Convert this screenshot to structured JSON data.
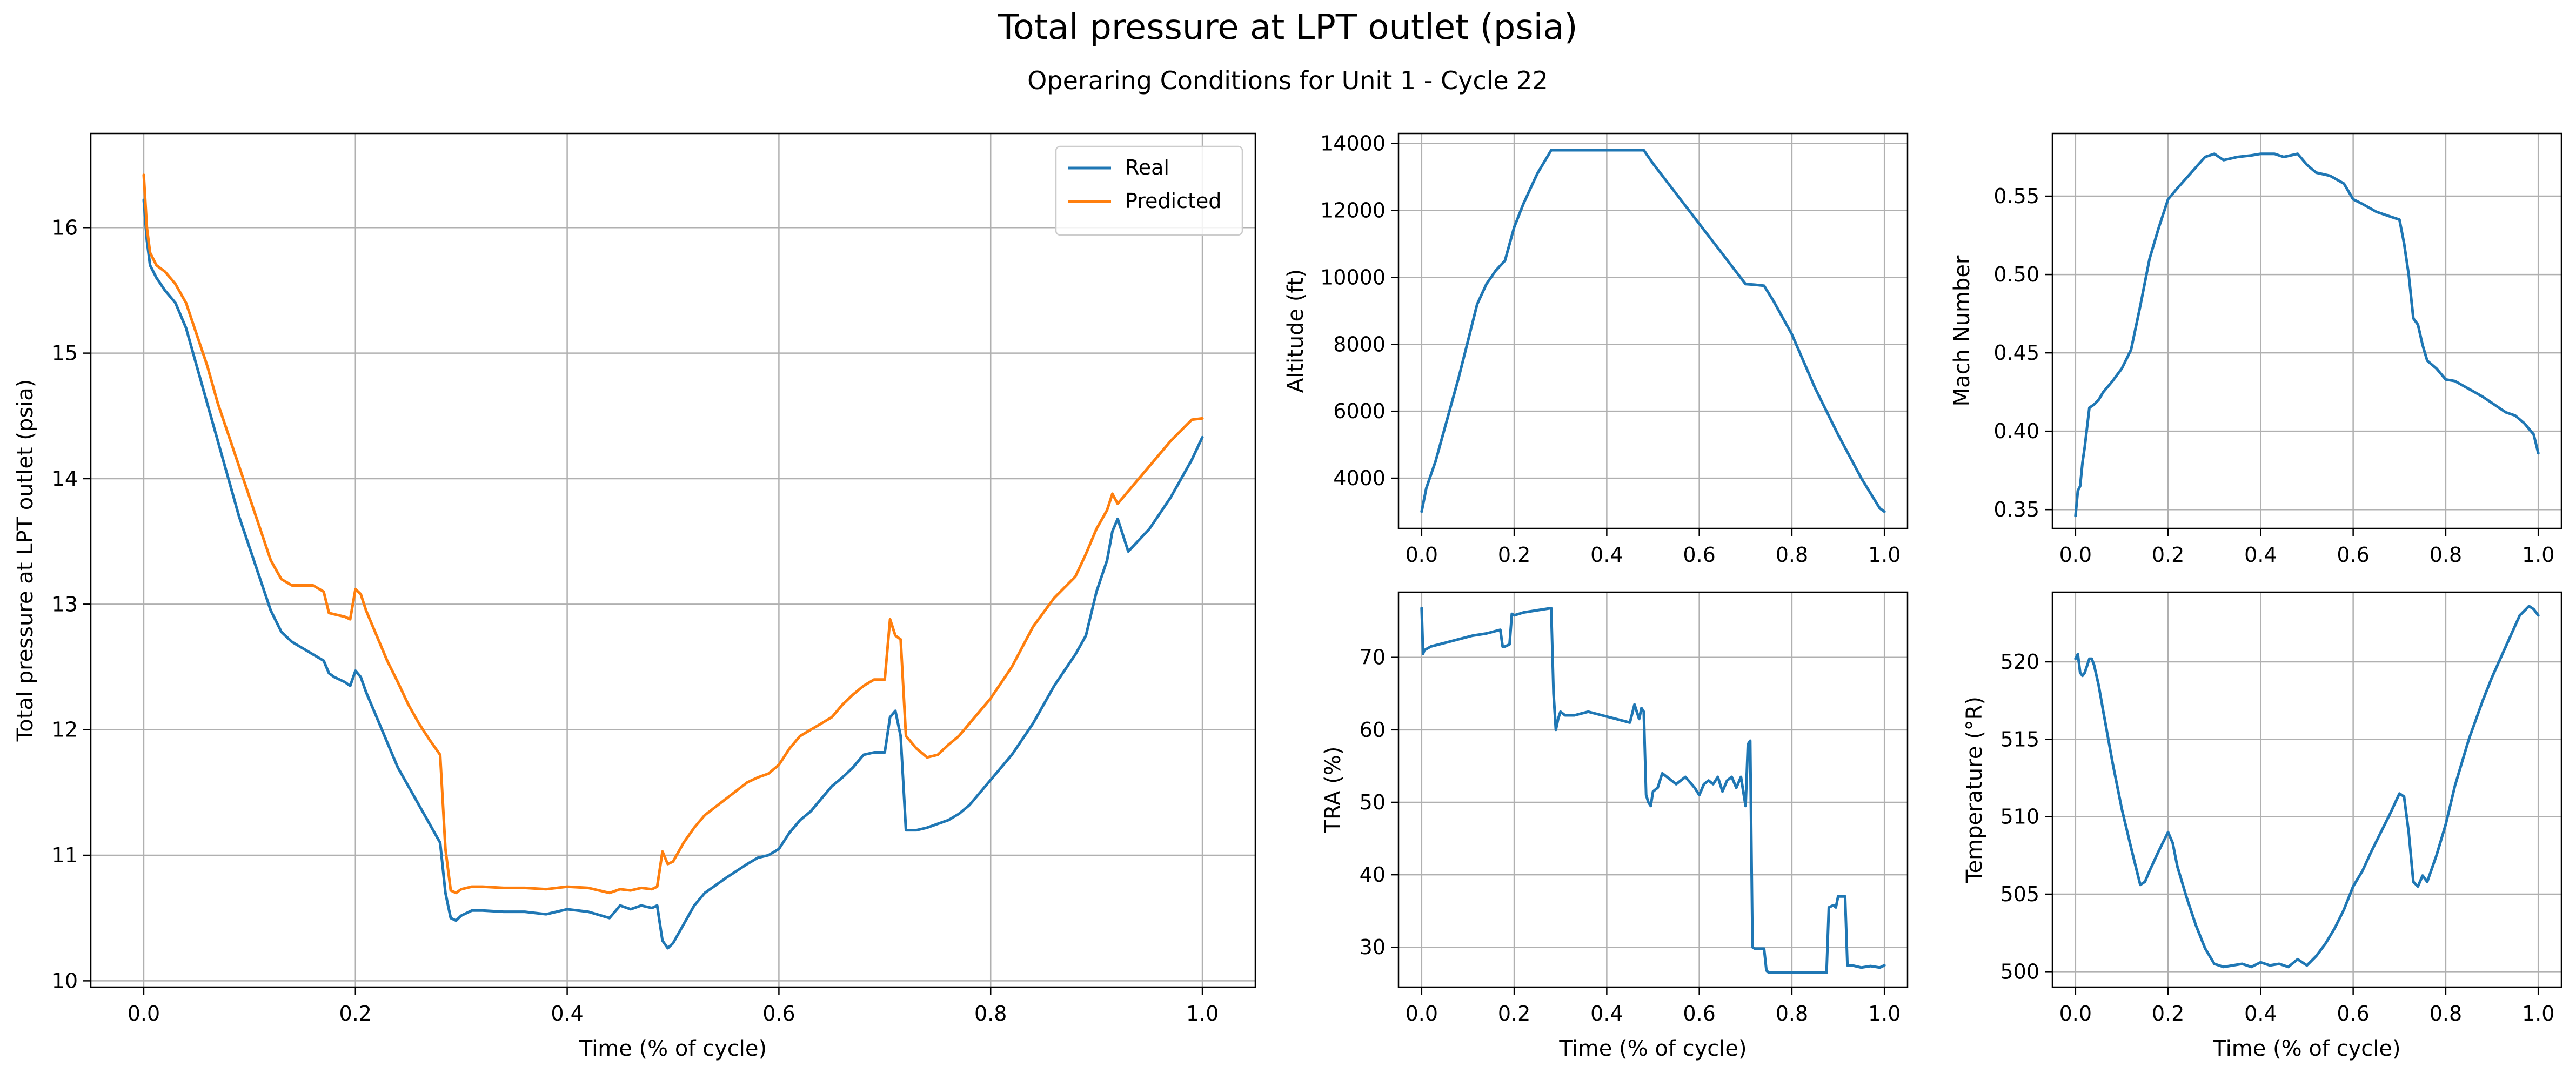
{
  "suptitle": "Total pressure at LPT outlet (psia)",
  "subtitle": "Operaring Conditions for Unit 1 - Cycle 22",
  "colors": {
    "real": "#1f77b4",
    "predicted": "#ff7f0e",
    "grid": "#b0b0b0"
  },
  "chart_data": [
    {
      "id": "pressure",
      "type": "line",
      "title": "",
      "xlabel": "Time (% of cycle)",
      "ylabel": "Total pressure at LPT outlet (psia)",
      "xlim": [
        -0.05,
        1.05
      ],
      "ylim": [
        9.95,
        16.75
      ],
      "xticks": [
        0.0,
        0.2,
        0.4,
        0.6,
        0.8,
        1.0
      ],
      "xtick_labels": [
        "0.0",
        "0.2",
        "0.4",
        "0.6",
        "0.8",
        "1.0"
      ],
      "yticks": [
        10,
        11,
        12,
        13,
        14,
        15,
        16
      ],
      "ytick_labels": [
        "10",
        "11",
        "12",
        "13",
        "14",
        "15",
        "16"
      ],
      "grid": true,
      "legend": "top-right",
      "series": [
        {
          "name": "Real",
          "color": "#1f77b4",
          "x": [
            0.0,
            0.003,
            0.006,
            0.012,
            0.02,
            0.03,
            0.04,
            0.05,
            0.06,
            0.07,
            0.08,
            0.09,
            0.1,
            0.11,
            0.12,
            0.13,
            0.14,
            0.15,
            0.16,
            0.17,
            0.175,
            0.18,
            0.19,
            0.195,
            0.2,
            0.205,
            0.21,
            0.22,
            0.23,
            0.24,
            0.25,
            0.26,
            0.27,
            0.28,
            0.285,
            0.29,
            0.295,
            0.3,
            0.31,
            0.32,
            0.34,
            0.36,
            0.38,
            0.4,
            0.42,
            0.44,
            0.45,
            0.46,
            0.47,
            0.48,
            0.485,
            0.49,
            0.495,
            0.5,
            0.51,
            0.52,
            0.53,
            0.55,
            0.57,
            0.58,
            0.59,
            0.6,
            0.61,
            0.62,
            0.63,
            0.64,
            0.65,
            0.66,
            0.67,
            0.68,
            0.69,
            0.7,
            0.705,
            0.71,
            0.715,
            0.72,
            0.73,
            0.74,
            0.75,
            0.76,
            0.77,
            0.78,
            0.79,
            0.8,
            0.82,
            0.84,
            0.86,
            0.88,
            0.89,
            0.9,
            0.91,
            0.915,
            0.92,
            0.93,
            0.95,
            0.97,
            0.99,
            1.0
          ],
          "y": [
            16.22,
            15.9,
            15.7,
            15.6,
            15.5,
            15.4,
            15.2,
            14.9,
            14.6,
            14.3,
            14.0,
            13.7,
            13.45,
            13.2,
            12.95,
            12.78,
            12.7,
            12.65,
            12.6,
            12.55,
            12.45,
            12.42,
            12.38,
            12.35,
            12.47,
            12.42,
            12.3,
            12.1,
            11.9,
            11.7,
            11.55,
            11.4,
            11.25,
            11.1,
            10.7,
            10.5,
            10.48,
            10.52,
            10.56,
            10.56,
            10.55,
            10.55,
            10.53,
            10.57,
            10.55,
            10.5,
            10.6,
            10.57,
            10.6,
            10.58,
            10.6,
            10.32,
            10.26,
            10.3,
            10.45,
            10.6,
            10.7,
            10.82,
            10.93,
            10.98,
            11.0,
            11.05,
            11.18,
            11.28,
            11.35,
            11.45,
            11.55,
            11.62,
            11.7,
            11.8,
            11.82,
            11.82,
            12.1,
            12.15,
            11.95,
            11.2,
            11.2,
            11.22,
            11.25,
            11.28,
            11.33,
            11.4,
            11.5,
            11.6,
            11.8,
            12.05,
            12.35,
            12.6,
            12.75,
            13.1,
            13.35,
            13.58,
            13.68,
            13.42,
            13.6,
            13.85,
            14.15,
            14.33
          ]
        },
        {
          "name": "Predicted",
          "color": "#ff7f0e",
          "x": [
            0.0,
            0.003,
            0.006,
            0.012,
            0.02,
            0.03,
            0.04,
            0.05,
            0.06,
            0.07,
            0.08,
            0.09,
            0.1,
            0.11,
            0.12,
            0.13,
            0.14,
            0.15,
            0.16,
            0.17,
            0.175,
            0.18,
            0.19,
            0.195,
            0.2,
            0.205,
            0.21,
            0.22,
            0.23,
            0.24,
            0.25,
            0.26,
            0.27,
            0.28,
            0.285,
            0.29,
            0.295,
            0.3,
            0.31,
            0.32,
            0.34,
            0.36,
            0.38,
            0.4,
            0.42,
            0.44,
            0.45,
            0.46,
            0.47,
            0.48,
            0.485,
            0.49,
            0.495,
            0.5,
            0.51,
            0.52,
            0.53,
            0.55,
            0.57,
            0.58,
            0.59,
            0.6,
            0.61,
            0.62,
            0.63,
            0.64,
            0.65,
            0.66,
            0.67,
            0.68,
            0.69,
            0.7,
            0.705,
            0.71,
            0.715,
            0.72,
            0.73,
            0.74,
            0.75,
            0.76,
            0.77,
            0.78,
            0.79,
            0.8,
            0.82,
            0.84,
            0.86,
            0.88,
            0.89,
            0.9,
            0.91,
            0.915,
            0.92,
            0.93,
            0.95,
            0.97,
            0.99,
            1.0
          ],
          "y": [
            16.42,
            16.0,
            15.8,
            15.7,
            15.65,
            15.55,
            15.4,
            15.15,
            14.9,
            14.6,
            14.35,
            14.1,
            13.85,
            13.6,
            13.35,
            13.2,
            13.15,
            13.15,
            13.15,
            13.1,
            12.93,
            12.92,
            12.9,
            12.88,
            13.12,
            13.08,
            12.95,
            12.75,
            12.55,
            12.38,
            12.2,
            12.05,
            11.92,
            11.8,
            11.05,
            10.72,
            10.7,
            10.73,
            10.75,
            10.75,
            10.74,
            10.74,
            10.73,
            10.75,
            10.74,
            10.7,
            10.73,
            10.72,
            10.74,
            10.73,
            10.75,
            11.03,
            10.93,
            10.95,
            11.1,
            11.22,
            11.32,
            11.45,
            11.58,
            11.62,
            11.65,
            11.72,
            11.85,
            11.95,
            12.0,
            12.05,
            12.1,
            12.2,
            12.28,
            12.35,
            12.4,
            12.4,
            12.88,
            12.75,
            12.72,
            11.95,
            11.85,
            11.78,
            11.8,
            11.88,
            11.95,
            12.05,
            12.15,
            12.25,
            12.5,
            12.82,
            13.05,
            13.22,
            13.4,
            13.6,
            13.75,
            13.88,
            13.8,
            13.9,
            14.1,
            14.3,
            14.47,
            14.48
          ]
        }
      ]
    },
    {
      "id": "altitude",
      "type": "line",
      "xlabel": "",
      "ylabel": "Altitude (ft)",
      "xlim": [
        -0.05,
        1.05
      ],
      "ylim": [
        2500,
        14300
      ],
      "xticks": [
        0.0,
        0.2,
        0.4,
        0.6,
        0.8,
        1.0
      ],
      "xtick_labels": [
        "0.0",
        "0.2",
        "0.4",
        "0.6",
        "0.8",
        "1.0"
      ],
      "yticks": [
        4000,
        6000,
        8000,
        10000,
        12000,
        14000
      ],
      "ytick_labels": [
        "4000",
        "6000",
        "8000",
        "10000",
        "12000",
        "14000"
      ],
      "grid": true,
      "series": [
        {
          "color": "#1f77b4",
          "x": [
            0.0,
            0.01,
            0.02,
            0.03,
            0.05,
            0.08,
            0.1,
            0.12,
            0.14,
            0.16,
            0.18,
            0.2,
            0.22,
            0.25,
            0.28,
            0.3,
            0.35,
            0.4,
            0.45,
            0.48,
            0.5,
            0.55,
            0.6,
            0.65,
            0.7,
            0.72,
            0.74,
            0.76,
            0.8,
            0.85,
            0.9,
            0.95,
            0.99,
            1.0
          ],
          "y": [
            3000,
            3700,
            4100,
            4500,
            5500,
            7000,
            8100,
            9200,
            9800,
            10200,
            10500,
            11500,
            12200,
            13100,
            13800,
            13800,
            13800,
            13800,
            13800,
            13800,
            13400,
            12500,
            11600,
            10700,
            9800,
            9780,
            9750,
            9300,
            8300,
            6700,
            5300,
            4000,
            3100,
            3000
          ]
        }
      ]
    },
    {
      "id": "mach",
      "type": "line",
      "xlabel": "",
      "ylabel": "Mach Number",
      "xlim": [
        -0.05,
        1.05
      ],
      "ylim": [
        0.338,
        0.59
      ],
      "xticks": [
        0.0,
        0.2,
        0.4,
        0.6,
        0.8,
        1.0
      ],
      "xtick_labels": [
        "0.0",
        "0.2",
        "0.4",
        "0.6",
        "0.8",
        "1.0"
      ],
      "yticks": [
        0.35,
        0.4,
        0.45,
        0.5,
        0.55
      ],
      "ytick_labels": [
        "0.35",
        "0.40",
        "0.45",
        "0.50",
        "0.55"
      ],
      "grid": true,
      "series": [
        {
          "color": "#1f77b4",
          "x": [
            0.0,
            0.005,
            0.01,
            0.015,
            0.02,
            0.03,
            0.04,
            0.05,
            0.06,
            0.08,
            0.1,
            0.12,
            0.14,
            0.16,
            0.18,
            0.2,
            0.22,
            0.25,
            0.28,
            0.3,
            0.32,
            0.35,
            0.38,
            0.4,
            0.43,
            0.45,
            0.48,
            0.5,
            0.52,
            0.55,
            0.58,
            0.6,
            0.62,
            0.65,
            0.68,
            0.7,
            0.71,
            0.72,
            0.73,
            0.74,
            0.75,
            0.76,
            0.78,
            0.8,
            0.82,
            0.85,
            0.88,
            0.9,
            0.93,
            0.95,
            0.97,
            0.99,
            1.0
          ],
          "y": [
            0.346,
            0.362,
            0.365,
            0.38,
            0.39,
            0.415,
            0.417,
            0.42,
            0.425,
            0.432,
            0.44,
            0.452,
            0.48,
            0.51,
            0.53,
            0.548,
            0.555,
            0.565,
            0.575,
            0.577,
            0.573,
            0.575,
            0.576,
            0.577,
            0.577,
            0.575,
            0.577,
            0.57,
            0.565,
            0.563,
            0.558,
            0.548,
            0.545,
            0.54,
            0.537,
            0.535,
            0.52,
            0.5,
            0.472,
            0.468,
            0.455,
            0.445,
            0.44,
            0.433,
            0.432,
            0.427,
            0.422,
            0.418,
            0.412,
            0.41,
            0.405,
            0.398,
            0.386
          ]
        }
      ]
    },
    {
      "id": "tra",
      "type": "line",
      "xlabel": "Time (% of cycle)",
      "ylabel": "TRA (%)",
      "xlim": [
        -0.05,
        1.05
      ],
      "ylim": [
        24.5,
        79
      ],
      "xticks": [
        0.0,
        0.2,
        0.4,
        0.6,
        0.8,
        1.0
      ],
      "xtick_labels": [
        "0.0",
        "0.2",
        "0.4",
        "0.6",
        "0.8",
        "1.0"
      ],
      "yticks": [
        30,
        40,
        50,
        60,
        70
      ],
      "ytick_labels": [
        "30",
        "40",
        "50",
        "60",
        "70"
      ],
      "grid": true,
      "series": [
        {
          "color": "#1f77b4",
          "x": [
            0.0,
            0.003,
            0.006,
            0.02,
            0.05,
            0.08,
            0.11,
            0.14,
            0.17,
            0.175,
            0.18,
            0.19,
            0.195,
            0.2,
            0.22,
            0.25,
            0.28,
            0.285,
            0.29,
            0.295,
            0.3,
            0.31,
            0.33,
            0.36,
            0.39,
            0.42,
            0.45,
            0.46,
            0.47,
            0.475,
            0.48,
            0.485,
            0.49,
            0.495,
            0.5,
            0.51,
            0.52,
            0.53,
            0.55,
            0.57,
            0.59,
            0.6,
            0.61,
            0.62,
            0.63,
            0.64,
            0.65,
            0.66,
            0.67,
            0.68,
            0.69,
            0.7,
            0.705,
            0.71,
            0.715,
            0.72,
            0.73,
            0.74,
            0.745,
            0.75,
            0.78,
            0.82,
            0.85,
            0.87,
            0.875,
            0.88,
            0.89,
            0.895,
            0.9,
            0.91,
            0.915,
            0.92,
            0.93,
            0.95,
            0.97,
            0.99,
            1.0
          ],
          "y": [
            76.8,
            70.5,
            71,
            71.5,
            72,
            72.5,
            73,
            73.3,
            73.8,
            71.5,
            71.5,
            71.8,
            76,
            75.8,
            76.2,
            76.5,
            76.8,
            65,
            60,
            61.5,
            62.5,
            62,
            62,
            62.5,
            62,
            61.5,
            61,
            63.5,
            61.5,
            63,
            62.5,
            51,
            50,
            49.5,
            51.5,
            52,
            54,
            53.5,
            52.5,
            53.5,
            52,
            51,
            52.5,
            53,
            52.5,
            53.5,
            51.5,
            53,
            53.5,
            52,
            53.5,
            49.5,
            58,
            58.5,
            30,
            29.8,
            29.8,
            29.8,
            26.8,
            26.5,
            26.5,
            26.5,
            26.5,
            26.5,
            26.5,
            35.5,
            35.8,
            35.5,
            37,
            37,
            37,
            27.5,
            27.5,
            27.2,
            27.4,
            27.2,
            27.5
          ]
        }
      ]
    },
    {
      "id": "temperature",
      "type": "line",
      "xlabel": "Time (% of cycle)",
      "ylabel": "Temperature (°R)",
      "xlim": [
        -0.05,
        1.05
      ],
      "ylim": [
        499.0,
        524.5
      ],
      "xticks": [
        0.0,
        0.2,
        0.4,
        0.6,
        0.8,
        1.0
      ],
      "xtick_labels": [
        "0.0",
        "0.2",
        "0.4",
        "0.6",
        "0.8",
        "1.0"
      ],
      "yticks": [
        500,
        505,
        510,
        515,
        520
      ],
      "ytick_labels": [
        "500",
        "505",
        "510",
        "515",
        "520"
      ],
      "grid": true,
      "series": [
        {
          "color": "#1f77b4",
          "x": [
            0.0,
            0.005,
            0.01,
            0.015,
            0.02,
            0.03,
            0.035,
            0.04,
            0.05,
            0.06,
            0.08,
            0.1,
            0.12,
            0.14,
            0.15,
            0.16,
            0.18,
            0.2,
            0.21,
            0.22,
            0.24,
            0.26,
            0.28,
            0.3,
            0.32,
            0.34,
            0.36,
            0.38,
            0.4,
            0.42,
            0.44,
            0.46,
            0.48,
            0.5,
            0.52,
            0.54,
            0.56,
            0.58,
            0.6,
            0.62,
            0.64,
            0.66,
            0.68,
            0.7,
            0.71,
            0.72,
            0.73,
            0.74,
            0.75,
            0.76,
            0.78,
            0.8,
            0.82,
            0.85,
            0.88,
            0.9,
            0.93,
            0.96,
            0.98,
            0.99,
            1.0
          ],
          "y": [
            520.2,
            520.5,
            519.3,
            519.1,
            519.3,
            520.2,
            520.2,
            519.8,
            518.5,
            516.8,
            513.5,
            510.5,
            508.0,
            505.6,
            505.8,
            506.5,
            507.8,
            509.0,
            508.3,
            506.8,
            504.8,
            503.0,
            501.5,
            500.5,
            500.3,
            500.4,
            500.5,
            500.3,
            500.6,
            500.4,
            500.5,
            500.3,
            500.8,
            500.4,
            501.0,
            501.8,
            502.8,
            504.0,
            505.5,
            506.5,
            507.8,
            509.0,
            510.2,
            511.5,
            511.3,
            509.0,
            505.8,
            505.5,
            506.2,
            505.8,
            507.5,
            509.5,
            512.0,
            515.0,
            517.5,
            519.0,
            521.0,
            523.0,
            523.6,
            523.4,
            523.0
          ]
        }
      ]
    }
  ]
}
